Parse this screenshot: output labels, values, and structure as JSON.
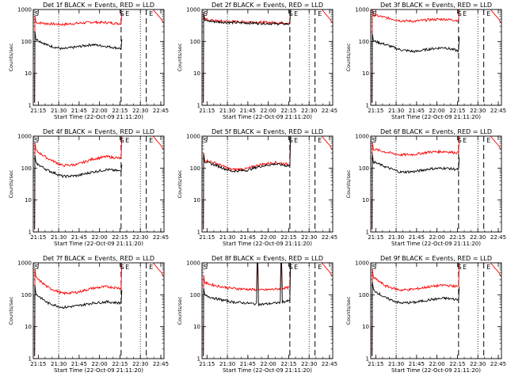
{
  "figure": {
    "background": "#ffffff",
    "axes_color": "#000000"
  },
  "chart_data": [
    {
      "type": "line",
      "detector": "Det 1f",
      "title": "Det 1f BLACK = Events, RED = LLD",
      "xlabel": "Start Time (22-Oct-09 21:11:20)",
      "ylabel": "Counts/sec",
      "x_ticks": [
        "21:15",
        "21:30",
        "21:45",
        "22:00",
        "22:15",
        "22:30",
        "22:45"
      ],
      "y_ticks": [
        "1",
        "10",
        "100",
        "1000"
      ],
      "ylim": [
        1,
        1000
      ],
      "y_scale": "log",
      "markers": [
        "S",
        "S",
        "E",
        "E"
      ],
      "series": [
        {
          "color": "#ff0000",
          "profile": "typical",
          "end_spike": 700,
          "values": [
            400,
            360,
            340,
            370,
            400,
            390,
            360
          ]
        },
        {
          "color": "#000000",
          "profile": "typical",
          "end_spike": 110,
          "values": [
            130,
            75,
            58,
            68,
            80,
            70,
            60
          ]
        }
      ]
    },
    {
      "type": "line",
      "detector": "Det 2f",
      "title": "Det 2f BLACK = Events, RED = LLD",
      "xlabel": "Start Time (22-Oct-09 21:11:20)",
      "ylabel": "Counts/sec",
      "x_ticks": [
        "21:15",
        "21:30",
        "21:45",
        "22:00",
        "22:15",
        "22:30",
        "22:45"
      ],
      "y_ticks": [
        "1",
        "10",
        "100",
        "1000"
      ],
      "ylim": [
        1,
        1000
      ],
      "y_scale": "log",
      "markers": [
        "S",
        "S",
        "E",
        "E"
      ],
      "series": [
        {
          "color": "#ff0000",
          "profile": "typical",
          "end_spike": 1000,
          "values": [
            500,
            440,
            420,
            410,
            400,
            390,
            380
          ]
        },
        {
          "color": "#000000",
          "profile": "typical",
          "end_spike": 1000,
          "values": [
            460,
            410,
            390,
            380,
            370,
            360,
            350
          ]
        }
      ]
    },
    {
      "type": "line",
      "detector": "Det 3f",
      "title": "Det 3f BLACK = Events, RED = LLD",
      "xlabel": "Start Time (22-Oct-09 21:11:20)",
      "ylabel": "Counts/sec",
      "x_ticks": [
        "21:15",
        "21:30",
        "21:45",
        "22:00",
        "22:15",
        "22:30",
        "22:45"
      ],
      "y_ticks": [
        "1",
        "10",
        "100",
        "1000"
      ],
      "ylim": [
        1,
        1000
      ],
      "y_scale": "log",
      "markers": [
        "S",
        "S",
        "E",
        "E"
      ],
      "series": [
        {
          "color": "#ff0000",
          "profile": "typical",
          "end_spike": 900,
          "values": [
            700,
            560,
            450,
            430,
            480,
            500,
            450
          ]
        },
        {
          "color": "#000000",
          "profile": "typical",
          "end_spike": 130,
          "values": [
            110,
            80,
            55,
            48,
            58,
            65,
            50
          ]
        }
      ]
    },
    {
      "type": "line",
      "detector": "Det 4f",
      "title": "Det 4f BLACK = Events, RED = LLD",
      "xlabel": "Start Time (22-Oct-09 21:11:20)",
      "ylabel": "Counts/sec",
      "x_ticks": [
        "21:15",
        "21:30",
        "21:45",
        "22:00",
        "22:15",
        "22:30",
        "22:45"
      ],
      "y_ticks": [
        "1",
        "10",
        "100",
        "1000"
      ],
      "ylim": [
        1,
        1000
      ],
      "y_scale": "log",
      "markers": [
        "S",
        "S",
        "E",
        "E"
      ],
      "series": [
        {
          "color": "#ff0000",
          "profile": "typical",
          "end_spike": 900,
          "values": [
            400,
            200,
            120,
            130,
            190,
            230,
            200
          ]
        },
        {
          "color": "#000000",
          "profile": "typical",
          "end_spike": 120,
          "values": [
            160,
            85,
            55,
            58,
            75,
            90,
            80
          ]
        }
      ]
    },
    {
      "type": "line",
      "detector": "Det 5f",
      "title": "Det 5f BLACK = Events, RED = LLD",
      "xlabel": "Start Time (22-Oct-09 21:11:20)",
      "ylabel": "Counts/sec",
      "x_ticks": [
        "21:15",
        "21:30",
        "21:45",
        "22:00",
        "22:15",
        "22:30",
        "22:45"
      ],
      "y_ticks": [
        "1",
        "10",
        "100",
        "1000"
      ],
      "ylim": [
        1,
        1000
      ],
      "y_scale": "log",
      "markers": [
        "S",
        "S",
        "E",
        "E"
      ],
      "series": [
        {
          "color": "#ff0000",
          "profile": "typical",
          "end_spike": 1000,
          "values": [
            190,
            140,
            90,
            95,
            130,
            150,
            130
          ]
        },
        {
          "color": "#000000",
          "profile": "typical",
          "end_spike": 1000,
          "values": [
            170,
            120,
            80,
            85,
            115,
            135,
            115
          ]
        }
      ]
    },
    {
      "type": "line",
      "detector": "Det 6f",
      "title": "Det 6f BLACK = Events, RED = LLD",
      "xlabel": "Start Time (22-Oct-09 21:11:20)",
      "ylabel": "Counts/sec",
      "x_ticks": [
        "21:15",
        "21:30",
        "21:45",
        "22:00",
        "22:15",
        "22:30",
        "22:45"
      ],
      "y_ticks": [
        "1",
        "10",
        "100",
        "1000"
      ],
      "ylim": [
        1,
        1000
      ],
      "y_scale": "log",
      "markers": [
        "S",
        "S",
        "E",
        "E"
      ],
      "series": [
        {
          "color": "#ff0000",
          "profile": "typical",
          "end_spike": 1000,
          "values": [
            420,
            320,
            260,
            270,
            320,
            330,
            300
          ]
        },
        {
          "color": "#000000",
          "profile": "typical",
          "end_spike": 200,
          "values": [
            170,
            110,
            75,
            78,
            95,
            100,
            90
          ]
        }
      ]
    },
    {
      "type": "line",
      "detector": "Det 7f",
      "title": "Det 7f BLACK = Events, RED = LLD",
      "xlabel": "Start Time (22-Oct-09 21:11:20)",
      "ylabel": "Counts/sec",
      "x_ticks": [
        "21:15",
        "21:30",
        "21:45",
        "22:00",
        "22:15",
        "22:30",
        "22:45"
      ],
      "y_ticks": [
        "1",
        "10",
        "100",
        "1000"
      ],
      "ylim": [
        1,
        1000
      ],
      "y_scale": "log",
      "markers": [
        "S",
        "S",
        "E",
        "E"
      ],
      "series": [
        {
          "color": "#ff0000",
          "profile": "typical",
          "end_spike": 1000,
          "values": [
            400,
            170,
            110,
            120,
            160,
            180,
            160
          ]
        },
        {
          "color": "#000000",
          "profile": "typical",
          "end_spike": 130,
          "values": [
            120,
            55,
            40,
            45,
            55,
            60,
            55
          ]
        }
      ]
    },
    {
      "type": "line",
      "detector": "Det 8f",
      "title": "Det 8f BLACK = Events, RED = LLD",
      "xlabel": "Start Time (22-Oct-09 21:11:20)",
      "ylabel": "Counts/sec",
      "x_ticks": [
        "21:15",
        "21:30",
        "21:45",
        "22:00",
        "22:15",
        "22:30",
        "22:45"
      ],
      "y_ticks": [
        "1",
        "10",
        "100",
        "1000"
      ],
      "ylim": [
        1,
        1000
      ],
      "y_scale": "log",
      "markers": [
        "S",
        "S",
        "E",
        "E"
      ],
      "series": [
        {
          "color": "#ff0000",
          "profile": "det8",
          "end_spike": 1000,
          "values": [
            250,
            190,
            160,
            150,
            140,
            150,
            170
          ]
        },
        {
          "color": "#000000",
          "profile": "det8",
          "end_spike": 1000,
          "values": [
            100,
            75,
            60,
            55,
            50,
            55,
            65
          ]
        }
      ]
    },
    {
      "type": "line",
      "detector": "Det 9f",
      "title": "Det 9f BLACK = Events, RED = LLD",
      "xlabel": "Start Time (22-Oct-09 21:11:20)",
      "ylabel": "Counts/sec",
      "x_ticks": [
        "21:15",
        "21:30",
        "21:45",
        "22:00",
        "22:15",
        "22:30",
        "22:45"
      ],
      "y_ticks": [
        "1",
        "10",
        "100",
        "1000"
      ],
      "ylim": [
        1,
        1000
      ],
      "y_scale": "log",
      "markers": [
        "S",
        "S",
        "E",
        "E"
      ],
      "series": [
        {
          "color": "#ff0000",
          "profile": "typical",
          "end_spike": 1000,
          "values": [
            400,
            190,
            140,
            150,
            180,
            200,
            180
          ]
        },
        {
          "color": "#000000",
          "profile": "typical",
          "end_spike": 170,
          "values": [
            160,
            80,
            55,
            58,
            70,
            78,
            70
          ]
        }
      ]
    }
  ]
}
